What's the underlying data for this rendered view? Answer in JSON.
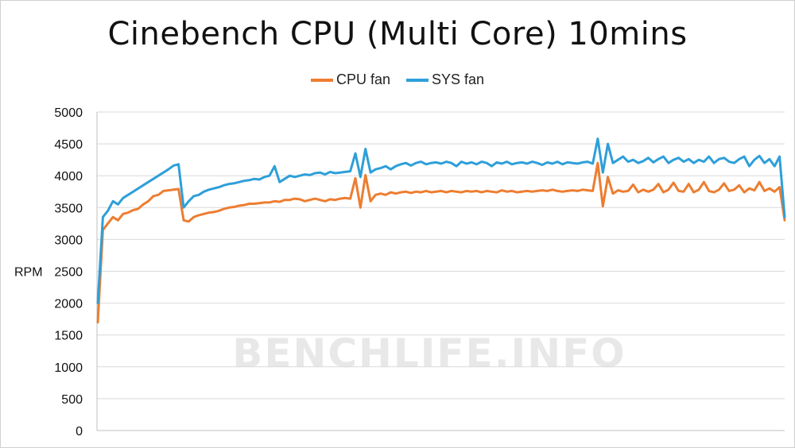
{
  "chart_data": {
    "type": "line",
    "title": "Cinebench CPU (Multi Core) 10mins",
    "ylabel": "RPM",
    "xlabel": "",
    "ylim": [
      0,
      5000
    ],
    "yticks": [
      0,
      500,
      1000,
      1500,
      2000,
      2500,
      3000,
      3500,
      4000,
      4500,
      5000
    ],
    "grid": true,
    "legend_position": "top",
    "watermark": "BENCHLIFE.INFO",
    "series": [
      {
        "name": "CPU fan",
        "color": "#ED7D31",
        "values": [
          1700,
          3150,
          3250,
          3350,
          3300,
          3400,
          3420,
          3460,
          3480,
          3550,
          3600,
          3680,
          3700,
          3760,
          3770,
          3780,
          3790,
          3300,
          3280,
          3350,
          3380,
          3400,
          3420,
          3430,
          3450,
          3480,
          3500,
          3510,
          3530,
          3540,
          3560,
          3560,
          3570,
          3580,
          3580,
          3600,
          3590,
          3620,
          3620,
          3640,
          3630,
          3600,
          3620,
          3640,
          3620,
          3600,
          3630,
          3620,
          3640,
          3650,
          3640,
          3960,
          3500,
          4010,
          3600,
          3700,
          3720,
          3700,
          3740,
          3720,
          3740,
          3750,
          3730,
          3750,
          3740,
          3760,
          3740,
          3750,
          3760,
          3740,
          3760,
          3750,
          3740,
          3760,
          3750,
          3760,
          3740,
          3760,
          3750,
          3740,
          3770,
          3750,
          3760,
          3740,
          3750,
          3760,
          3750,
          3760,
          3770,
          3760,
          3780,
          3760,
          3750,
          3760,
          3770,
          3760,
          3780,
          3770,
          3760,
          4200,
          3520,
          3980,
          3720,
          3770,
          3750,
          3760,
          3860,
          3740,
          3780,
          3750,
          3780,
          3870,
          3740,
          3780,
          3890,
          3760,
          3750,
          3870,
          3740,
          3780,
          3900,
          3760,
          3740,
          3780,
          3880,
          3760,
          3780,
          3850,
          3740,
          3800,
          3770,
          3900,
          3760,
          3800,
          3750,
          3820,
          3300
        ]
      },
      {
        "name": "SYS fan",
        "color": "#2E9FD9",
        "values": [
          2000,
          3350,
          3450,
          3600,
          3550,
          3650,
          3700,
          3750,
          3800,
          3850,
          3900,
          3950,
          4000,
          4050,
          4100,
          4160,
          4180,
          3500,
          3600,
          3680,
          3700,
          3750,
          3780,
          3800,
          3820,
          3850,
          3870,
          3880,
          3900,
          3920,
          3930,
          3950,
          3940,
          3980,
          4000,
          4150,
          3900,
          3950,
          4000,
          3980,
          4000,
          4020,
          4010,
          4040,
          4050,
          4020,
          4060,
          4040,
          4050,
          4060,
          4070,
          4350,
          3980,
          4420,
          4050,
          4100,
          4120,
          4150,
          4100,
          4150,
          4180,
          4200,
          4160,
          4200,
          4220,
          4180,
          4200,
          4210,
          4190,
          4220,
          4200,
          4150,
          4220,
          4190,
          4210,
          4180,
          4220,
          4200,
          4150,
          4210,
          4190,
          4220,
          4180,
          4200,
          4210,
          4190,
          4220,
          4200,
          4170,
          4210,
          4190,
          4220,
          4180,
          4210,
          4200,
          4190,
          4210,
          4220,
          4190,
          4580,
          4050,
          4500,
          4200,
          4250,
          4300,
          4220,
          4250,
          4200,
          4230,
          4280,
          4210,
          4260,
          4300,
          4200,
          4250,
          4280,
          4220,
          4260,
          4200,
          4250,
          4220,
          4300,
          4200,
          4260,
          4280,
          4220,
          4200,
          4260,
          4300,
          4150,
          4250,
          4310,
          4200,
          4260,
          4150,
          4300,
          3350
        ]
      }
    ]
  }
}
